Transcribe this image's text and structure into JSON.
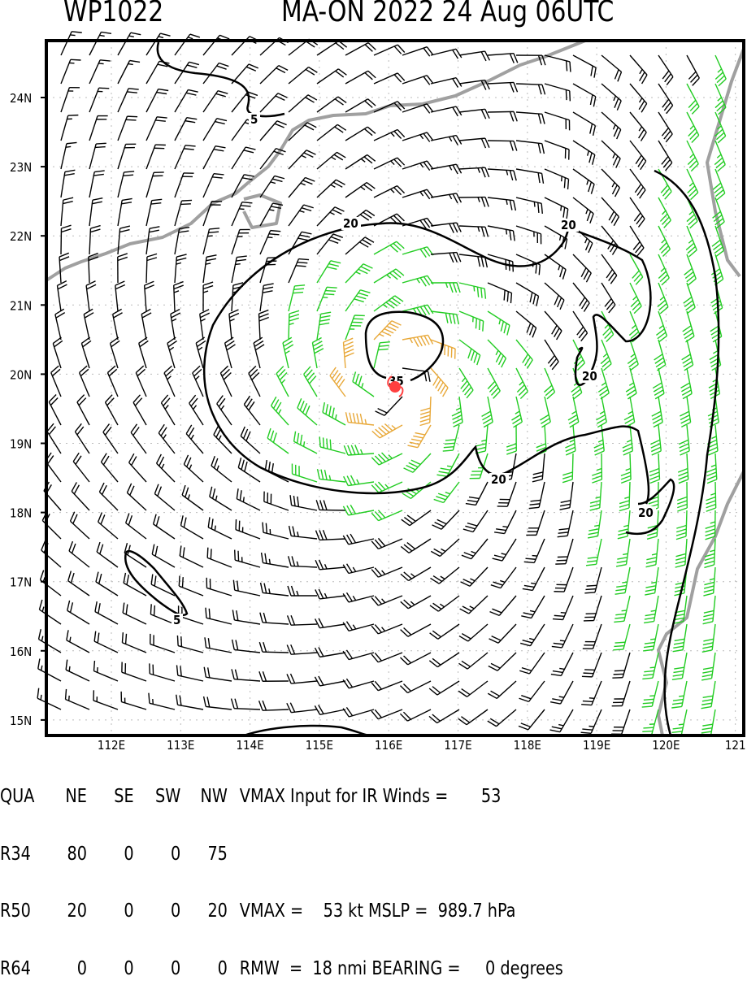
{
  "header": {
    "storm_id": "WP1022",
    "storm_info": "MA-ON 2022 24 Aug 06UTC"
  },
  "map": {
    "lat_labels": [
      "24N",
      "23N",
      "22N",
      "21N",
      "20N",
      "19N",
      "18N",
      "17N",
      "16N",
      "15N"
    ],
    "lon_labels": [
      "112E",
      "113E",
      "114E",
      "115E",
      "116E",
      "117E",
      "118E",
      "119E",
      "120E",
      "121"
    ],
    "contour_labels": [
      "5",
      "5",
      "20",
      "20",
      "20",
      "20",
      "20",
      "35"
    ],
    "storm_center": {
      "lat": 19.8,
      "lon": 116.1,
      "color": "#ff4040"
    },
    "barb_colors": {
      "below_34kt": "#000000",
      "34_to_49kt": "#22cc22",
      "50kt_plus": "#e8a838"
    },
    "coastline_color": "#a0a0a0"
  },
  "table": {
    "header": [
      "QUA",
      "NE",
      "SE",
      "SW",
      "NW"
    ],
    "rows": [
      [
        "R34",
        "80",
        "0",
        "0",
        "75"
      ],
      [
        "R50",
        "20",
        "0",
        "0",
        "20"
      ],
      [
        "R64",
        "0",
        "0",
        "0",
        "0"
      ]
    ],
    "vmax_ir_label": "VMAX Input for IR Winds =",
    "vmax_ir_value": "53",
    "vmax_line": "VMAX =    53 kt MSLP =  989.7 hPa",
    "rmw_line": "RMW  =  18 nmi BEARING =     0 degrees"
  }
}
